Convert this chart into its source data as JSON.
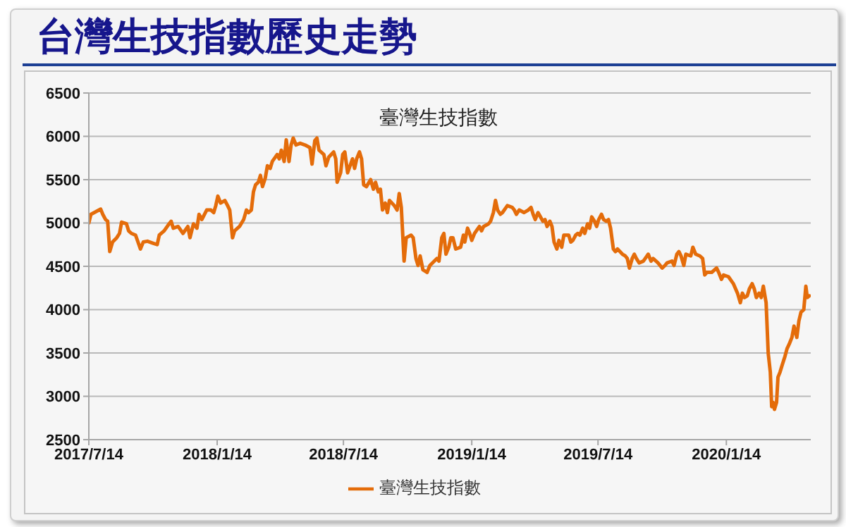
{
  "chart_data": {
    "type": "line",
    "title": "台灣生技指數歷史走勢",
    "subtitle": "臺灣生技指數",
    "x": [
      "2017-07-14",
      "2017-07-17",
      "2017-07-24",
      "2017-07-31",
      "2017-08-03",
      "2017-08-07",
      "2017-08-10",
      "2017-08-13",
      "2017-08-17",
      "2017-08-23",
      "2017-08-27",
      "2017-08-30",
      "2017-09-06",
      "2017-09-09",
      "2017-09-13",
      "2017-09-19",
      "2017-09-26",
      "2017-09-30",
      "2017-10-06",
      "2017-10-13",
      "2017-10-20",
      "2017-10-23",
      "2017-10-30",
      "2017-11-06",
      "2017-11-09",
      "2017-11-12",
      "2017-11-19",
      "2017-11-26",
      "2017-12-03",
      "2017-12-06",
      "2017-12-11",
      "2017-12-16",
      "2017-12-19",
      "2017-12-23",
      "2017-12-30",
      "2018-01-05",
      "2018-01-09",
      "2018-01-12",
      "2018-01-15",
      "2018-01-19",
      "2018-01-25",
      "2018-01-29",
      "2018-02-01",
      "2018-02-05",
      "2018-02-08",
      "2018-02-15",
      "2018-02-21",
      "2018-02-25",
      "2018-02-28",
      "2018-03-04",
      "2018-03-07",
      "2018-03-10",
      "2018-03-14",
      "2018-03-17",
      "2018-03-20",
      "2018-03-24",
      "2018-03-27",
      "2018-03-31",
      "2018-04-03",
      "2018-04-10",
      "2018-04-13",
      "2018-04-16",
      "2018-04-20",
      "2018-04-23",
      "2018-04-27",
      "2018-04-30",
      "2018-05-03",
      "2018-05-07",
      "2018-05-13",
      "2018-05-20",
      "2018-05-27",
      "2018-05-30",
      "2018-06-03",
      "2018-06-06",
      "2018-06-09",
      "2018-06-16",
      "2018-06-19",
      "2018-06-23",
      "2018-06-30",
      "2018-07-03",
      "2018-07-05",
      "2018-07-10",
      "2018-07-13",
      "2018-07-16",
      "2018-07-20",
      "2018-07-27",
      "2018-07-30",
      "2018-08-02",
      "2018-08-06",
      "2018-08-09",
      "2018-08-12",
      "2018-08-16",
      "2018-08-22",
      "2018-08-26",
      "2018-08-29",
      "2018-09-02",
      "2018-09-05",
      "2018-09-08",
      "2018-09-12",
      "2018-09-15",
      "2018-09-18",
      "2018-09-25",
      "2018-09-29",
      "2018-10-02",
      "2018-10-05",
      "2018-10-09",
      "2018-10-12",
      "2018-10-19",
      "2018-10-22",
      "2018-10-26",
      "2018-10-29",
      "2018-11-01",
      "2018-11-05",
      "2018-11-11",
      "2018-11-15",
      "2018-11-25",
      "2018-11-28",
      "2018-12-02",
      "2018-12-05",
      "2018-12-08",
      "2018-12-12",
      "2018-12-15",
      "2018-12-18",
      "2018-12-22",
      "2018-12-29",
      "2019-01-02",
      "2019-01-04",
      "2019-01-08",
      "2019-01-11",
      "2019-01-14",
      "2019-01-18",
      "2019-01-25",
      "2019-01-28",
      "2019-01-31",
      "2019-02-07",
      "2019-02-10",
      "2019-02-14",
      "2019-02-17",
      "2019-02-20",
      "2019-02-24",
      "2019-02-27",
      "2019-03-06",
      "2019-03-13",
      "2019-03-16",
      "2019-03-19",
      "2019-03-23",
      "2019-03-30",
      "2019-04-05",
      "2019-04-09",
      "2019-04-12",
      "2019-04-15",
      "2019-04-19",
      "2019-04-26",
      "2019-04-29",
      "2019-05-02",
      "2019-05-06",
      "2019-05-09",
      "2019-05-12",
      "2019-05-16",
      "2019-05-19",
      "2019-05-23",
      "2019-05-26",
      "2019-06-02",
      "2019-06-05",
      "2019-06-08",
      "2019-06-12",
      "2019-06-15",
      "2019-06-18",
      "2019-06-22",
      "2019-06-25",
      "2019-06-29",
      "2019-07-02",
      "2019-07-05",
      "2019-07-09",
      "2019-07-12",
      "2019-07-15",
      "2019-07-19",
      "2019-07-22",
      "2019-07-26",
      "2019-07-29",
      "2019-08-01",
      "2019-08-05",
      "2019-08-08",
      "2019-08-11",
      "2019-08-18",
      "2019-08-22",
      "2019-08-25",
      "2019-08-28",
      "2019-09-01",
      "2019-09-04",
      "2019-09-07",
      "2019-09-11",
      "2019-09-17",
      "2019-09-24",
      "2019-09-28",
      "2019-10-01",
      "2019-10-08",
      "2019-10-14",
      "2019-10-18",
      "2019-10-21",
      "2019-10-28",
      "2019-10-31",
      "2019-11-04",
      "2019-11-07",
      "2019-11-10",
      "2019-11-14",
      "2019-11-17",
      "2019-11-24",
      "2019-11-27",
      "2019-12-01",
      "2019-12-07",
      "2019-12-11",
      "2019-12-14",
      "2019-12-17",
      "2019-12-24",
      "2019-12-31",
      "2020-01-03",
      "2020-01-07",
      "2020-01-10",
      "2020-01-17",
      "2020-01-24",
      "2020-01-30",
      "2020-02-03",
      "2020-02-06",
      "2020-02-09",
      "2020-02-13",
      "2020-02-16",
      "2020-02-20",
      "2020-02-23",
      "2020-02-26",
      "2020-03-01",
      "2020-03-04",
      "2020-03-07",
      "2020-03-11",
      "2020-03-14",
      "2020-03-17",
      "2020-03-19",
      "2020-03-21",
      "2020-03-23",
      "2020-03-26",
      "2020-03-28",
      "2020-03-31",
      "2020-04-03",
      "2020-04-07",
      "2020-04-10",
      "2020-04-13",
      "2020-04-17",
      "2020-04-20",
      "2020-04-24",
      "2020-04-27",
      "2020-04-30",
      "2020-05-04",
      "2020-05-07",
      "2020-05-09",
      "2020-05-12"
    ],
    "series": [
      {
        "name": "臺灣生技指數",
        "color": "#e46c0a",
        "values": [
          5000,
          5100,
          5130,
          5160,
          5100,
          5040,
          5020,
          4670,
          4780,
          4830,
          4880,
          5010,
          4990,
          4910,
          4880,
          4860,
          4700,
          4780,
          4790,
          4770,
          4750,
          4860,
          4910,
          4990,
          5020,
          4940,
          4960,
          4880,
          4960,
          4830,
          4990,
          4940,
          5100,
          5040,
          5150,
          5150,
          5120,
          5200,
          5310,
          5230,
          5260,
          5200,
          5150,
          4830,
          4910,
          4960,
          5040,
          5150,
          5120,
          5150,
          5360,
          5440,
          5470,
          5550,
          5420,
          5520,
          5660,
          5630,
          5710,
          5790,
          5740,
          5840,
          5710,
          5960,
          5710,
          5900,
          5980,
          5900,
          5920,
          5900,
          5870,
          5680,
          5950,
          5980,
          5840,
          5790,
          5660,
          5760,
          5820,
          5740,
          5470,
          5580,
          5790,
          5820,
          5580,
          5740,
          5630,
          5740,
          5820,
          5740,
          5440,
          5420,
          5500,
          5390,
          5470,
          5360,
          5390,
          5150,
          5230,
          5120,
          5260,
          5200,
          5150,
          5340,
          5180,
          4560,
          4830,
          4860,
          4830,
          4590,
          4510,
          4620,
          4460,
          4430,
          4510,
          4590,
          4560,
          4830,
          4880,
          4640,
          4720,
          4830,
          4830,
          4700,
          4720,
          4860,
          4780,
          4940,
          4880,
          4800,
          4880,
          4960,
          4910,
          4960,
          4990,
          5020,
          5120,
          5260,
          5150,
          5100,
          5120,
          5200,
          5180,
          5150,
          5100,
          5150,
          5120,
          5150,
          5180,
          5100,
          5040,
          5120,
          5020,
          5040,
          4960,
          5020,
          4960,
          4780,
          4700,
          4800,
          4720,
          4860,
          4860,
          4780,
          4800,
          4860,
          4880,
          4860,
          4940,
          4880,
          4990,
          4940,
          5070,
          5020,
          4960,
          5040,
          5100,
          5040,
          5020,
          5040,
          4940,
          4700,
          4670,
          4700,
          4640,
          4620,
          4590,
          4480,
          4590,
          4640,
          4590,
          4540,
          4560,
          4640,
          4560,
          4590,
          4540,
          4480,
          4510,
          4540,
          4560,
          4510,
          4640,
          4670,
          4620,
          4510,
          4640,
          4620,
          4720,
          4640,
          4620,
          4590,
          4400,
          4430,
          4430,
          4480,
          4430,
          4350,
          4400,
          4380,
          4300,
          4190,
          4080,
          4190,
          4140,
          4160,
          4240,
          4300,
          4240,
          4140,
          4190,
          4140,
          4270,
          4080,
          3500,
          3280,
          2880,
          2930,
          2850,
          2930,
          3220,
          3280,
          3360,
          3460,
          3550,
          3600,
          3680,
          3810,
          3680,
          3870,
          3970,
          4000,
          4270,
          4140,
          4160
        ]
      }
    ],
    "xlim": [
      "2017-07-14",
      "2020-05-14"
    ],
    "xticks": [
      {
        "value": "2017-07-14",
        "label": "2017/7/14"
      },
      {
        "value": "2018-01-14",
        "label": "2018/1/14"
      },
      {
        "value": "2018-07-14",
        "label": "2018/7/14"
      },
      {
        "value": "2019-01-14",
        "label": "2019/1/14"
      },
      {
        "value": "2019-07-14",
        "label": "2019/7/14"
      },
      {
        "value": "2020-01-14",
        "label": "2020/1/14"
      }
    ],
    "ylim": [
      2500,
      6500
    ],
    "yticks": [
      2500,
      3000,
      3500,
      4000,
      4500,
      5000,
      5500,
      6000,
      6500
    ],
    "grid": "y",
    "legend": "bottom",
    "marker": "none"
  }
}
